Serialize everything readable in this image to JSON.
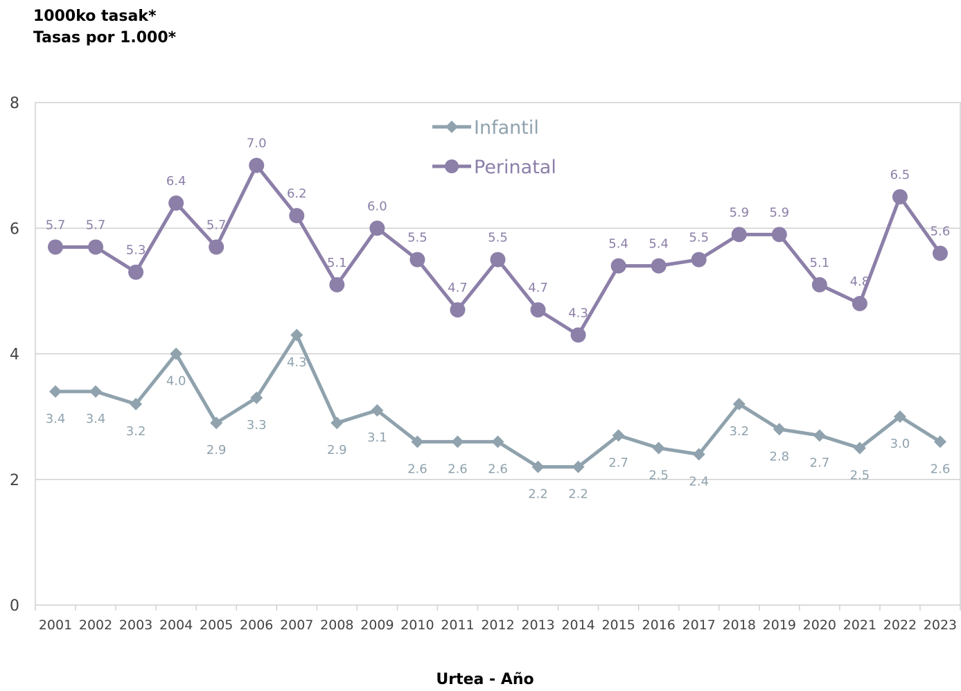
{
  "chart_data": {
    "type": "line",
    "title_lines": [
      "1000ko tasak*",
      "Tasas por 1.000*"
    ],
    "xlabel": "Urtea - Año",
    "ylim": [
      0,
      8
    ],
    "yticks": [
      0,
      2,
      4,
      6,
      8
    ],
    "grid": true,
    "legend_position": "top-center",
    "x": [
      "2001",
      "2002",
      "2003",
      "2004",
      "2005",
      "2006",
      "2007",
      "2008",
      "2009",
      "2010",
      "2011",
      "2012",
      "2013",
      "2014",
      "2015",
      "2016",
      "2017",
      "2018",
      "2019",
      "2020",
      "2021",
      "2022",
      "2023"
    ],
    "series": [
      {
        "name": "Infantil",
        "color": "#8fa2ad",
        "marker": "diamond",
        "values": [
          3.4,
          3.4,
          3.2,
          4.0,
          2.9,
          3.3,
          4.3,
          2.9,
          3.1,
          2.6,
          2.6,
          2.6,
          2.2,
          2.2,
          2.7,
          2.5,
          2.4,
          3.2,
          2.8,
          2.7,
          2.5,
          3.0,
          2.6
        ],
        "labels": [
          "3.4",
          "3.4",
          "3.2",
          "4.0",
          "2.9",
          "3.3",
          "4.3",
          "2.9",
          "3.1",
          "2.6",
          "2.6",
          "2.6",
          "2.2",
          "2.2",
          "2.7",
          "2.5",
          "2.4",
          "3.2",
          "2.8",
          "2.7",
          "2.5",
          "3.0",
          "2.6"
        ]
      },
      {
        "name": "Perinatal",
        "color": "#8c7fa8",
        "marker": "circle",
        "values": [
          5.7,
          5.7,
          5.3,
          6.4,
          5.7,
          7.0,
          6.2,
          5.1,
          6.0,
          5.5,
          4.7,
          5.5,
          4.7,
          4.3,
          5.4,
          5.4,
          5.5,
          5.9,
          5.9,
          5.1,
          4.8,
          6.5,
          5.6
        ],
        "labels": [
          "5.7",
          "5.7",
          "5.3",
          "6.4",
          "5.7",
          "7.0",
          "6.2",
          "5.1",
          "6.0",
          "5.5",
          "4.7",
          "5.5",
          "4.7",
          "4.3",
          "5.4",
          "5.4",
          "5.5",
          "5.9",
          "5.9",
          "5.1",
          "4.8",
          "6.5",
          "5.6"
        ]
      }
    ]
  }
}
